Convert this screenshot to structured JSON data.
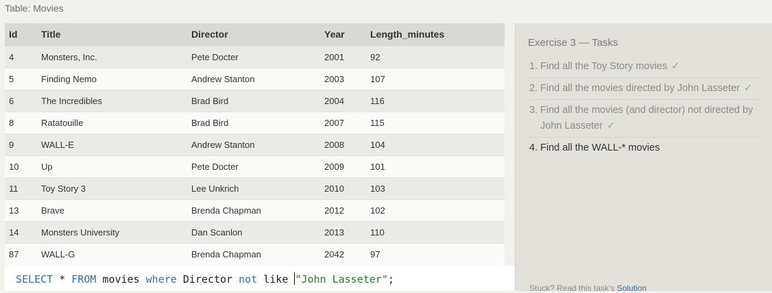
{
  "table": {
    "caption": "Table: Movies",
    "columns": [
      "Id",
      "Title",
      "Director",
      "Year",
      "Length_minutes"
    ],
    "rows": [
      [
        "4",
        "Monsters, Inc.",
        "Pete Docter",
        "2001",
        "92"
      ],
      [
        "5",
        "Finding Nemo",
        "Andrew Stanton",
        "2003",
        "107"
      ],
      [
        "6",
        "The Incredibles",
        "Brad Bird",
        "2004",
        "116"
      ],
      [
        "8",
        "Ratatouille",
        "Brad Bird",
        "2007",
        "115"
      ],
      [
        "9",
        "WALL-E",
        "Andrew Stanton",
        "2008",
        "104"
      ],
      [
        "10",
        "Up",
        "Pete Docter",
        "2009",
        "101"
      ],
      [
        "11",
        "Toy Story 3",
        "Lee Unkrich",
        "2010",
        "103"
      ],
      [
        "13",
        "Brave",
        "Brenda Chapman",
        "2012",
        "102"
      ],
      [
        "14",
        "Monsters University",
        "Dan Scanlon",
        "2013",
        "110"
      ],
      [
        "87",
        "WALL-G",
        "Brenda Chapman",
        "2042",
        "97"
      ]
    ]
  },
  "editor": {
    "kw_select": "SELECT",
    "t_star": " * ",
    "kw_from": "FROM",
    "t_table": " movies ",
    "kw_where": "where",
    "t_col": " Director ",
    "kw_not": "not",
    "t_like": " like ",
    "str_value": "\"John Lasseter\"",
    "t_end": ";"
  },
  "exercise": {
    "title": "Exercise 3 — Tasks",
    "check_glyph": "✓",
    "tasks": [
      {
        "num": "1.",
        "text": "Find all the Toy Story movies",
        "done": true
      },
      {
        "num": "2.",
        "text": "Find all the movies directed by John Lasseter",
        "done": true
      },
      {
        "num": "3.",
        "text": "Find all the movies (and director) not directed by John Lasseter",
        "done": true
      },
      {
        "num": "4.",
        "text": "Find all the WALL-* movies",
        "done": false
      }
    ],
    "hint_text": "Stuck? Read this task's ",
    "hint_link": "Solution"
  },
  "colors": {
    "keyword": "#3b6ea5",
    "string": "#2a7a2a",
    "check": "#6cbf5a"
  }
}
